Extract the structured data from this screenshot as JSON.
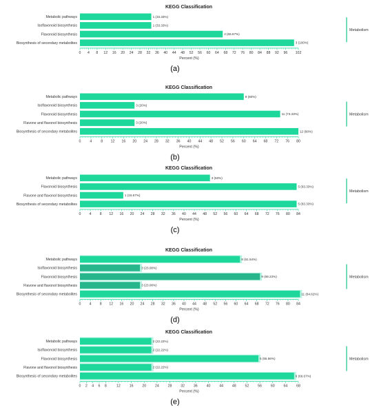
{
  "colors": {
    "bar": "#1ed79a",
    "bar_dark": "#27b68c",
    "bar_light": "#b6f3e1",
    "axis": "#1ed79a",
    "bracket": "#14c58c"
  },
  "chart_data": [
    {
      "type": "bar",
      "orientation": "horizontal",
      "panel_label": "(a)",
      "title": "KEGG Classification",
      "xlabel": "Percent (%)",
      "group_label": "Metabolism",
      "categories": [
        "Metabolic pathways",
        "Isoflavonoid biosynthesis",
        "Flavonoid biosynthesis",
        "Biosynthesis of secondary metabolites"
      ],
      "values": [
        33.33,
        33.33,
        66.67,
        100
      ],
      "data_labels": [
        "1 (33.33%)",
        "1 (33.33%)",
        "2 (66.67%)",
        "3 (100%)"
      ],
      "xlim": [
        0,
        102
      ],
      "xticks": [
        0,
        4,
        8,
        12,
        16,
        20,
        24,
        28,
        32,
        36,
        40,
        44,
        48,
        52,
        56,
        60,
        64,
        68,
        72,
        76,
        80,
        84,
        88,
        92,
        96,
        102
      ]
    },
    {
      "type": "bar",
      "orientation": "horizontal",
      "panel_label": "(b)",
      "title": "KEGG Classification",
      "xlabel": "Percent (%)",
      "group_label": "Metabolism",
      "categories": [
        "Metabolic pathways",
        "Isoflavonoid biosynthesis",
        "Flavonoid biosynthesis",
        "Flavone and flavonol biosynthesis",
        "Biosynthesis of secondary metabolites"
      ],
      "values": [
        60,
        20,
        73.33,
        20,
        80
      ],
      "data_labels": [
        "9 (60%)",
        "3 (20%)",
        "11 (73.33%)",
        "3 (20%)",
        "12 (80%)"
      ],
      "xlim": [
        0,
        80
      ],
      "xticks": [
        0,
        4,
        8,
        12,
        16,
        20,
        24,
        28,
        32,
        36,
        40,
        44,
        48,
        52,
        56,
        60,
        64,
        68,
        72,
        76,
        80
      ]
    },
    {
      "type": "bar",
      "orientation": "horizontal",
      "panel_label": "(c)",
      "title": "KEGG Classification",
      "xlabel": "Percent (%)",
      "group_label": "Metabolism",
      "categories": [
        "Metabolic pathways",
        "Flavonoid biosynthesis",
        "Flavone and flavonol biosynthesis",
        "Biosynthesis of secondary metabolites"
      ],
      "values": [
        50,
        83.33,
        16.67,
        83.33
      ],
      "data_labels": [
        "3 (50%)",
        "5 (83.33%)",
        "1 (16.67%)",
        "5 (83.33%)"
      ],
      "xlim": [
        0,
        84
      ],
      "xticks": [
        0,
        4,
        8,
        12,
        16,
        20,
        24,
        28,
        32,
        36,
        40,
        44,
        48,
        52,
        56,
        60,
        64,
        68,
        72,
        76,
        80,
        84
      ]
    },
    {
      "type": "bar",
      "orientation": "horizontal",
      "panel_label": "(d)",
      "title": "KEGG Classification",
      "xlabel": "Percent (%)",
      "group_label": "Metabolism",
      "categories": [
        "Metabolic pathways",
        "Isoflavonoid biosynthesis",
        "Flavonoid biosynthesis",
        "Flavone and flavonol biosynthesis",
        "Biosynthesis of secondary metabolites"
      ],
      "values": [
        61.54,
        23.08,
        69.23,
        23.08,
        84.62
      ],
      "data_labels": [
        "8 (61.54%)",
        "3 (23.08%)",
        "9 (69.23%)",
        "3 (23.08%)",
        "11 (84.62%)"
      ],
      "xlim": [
        0,
        84
      ],
      "xticks": [
        0,
        4,
        8,
        12,
        16,
        20,
        24,
        28,
        32,
        36,
        40,
        44,
        48,
        52,
        56,
        60,
        64,
        68,
        72,
        76,
        80,
        84
      ]
    },
    {
      "type": "bar",
      "orientation": "horizontal",
      "panel_label": "(e)",
      "title": "KEGG Classification",
      "xlabel": "Percent (%)",
      "group_label": "Metabolism",
      "categories": [
        "Metabolic pathways",
        "Isoflavonoid biosynthesis",
        "Flavonoid biosynthesis",
        "Flavone and flavonol biosynthesis",
        "Biosynthesis of secondary metabolites"
      ],
      "values": [
        22.22,
        22.22,
        55.56,
        22.22,
        66.67
      ],
      "data_labels": [
        "2 (22.22%)",
        "2 (22.22%)",
        "5 (55.56%)",
        "2 (22.22%)",
        "6 (66.67%)"
      ],
      "xlim": [
        0,
        68
      ],
      "xticks": [
        0,
        2,
        4,
        6,
        8,
        12,
        16,
        20,
        24,
        28,
        32,
        36,
        40,
        44,
        48,
        52,
        56,
        60,
        64,
        68
      ]
    }
  ]
}
